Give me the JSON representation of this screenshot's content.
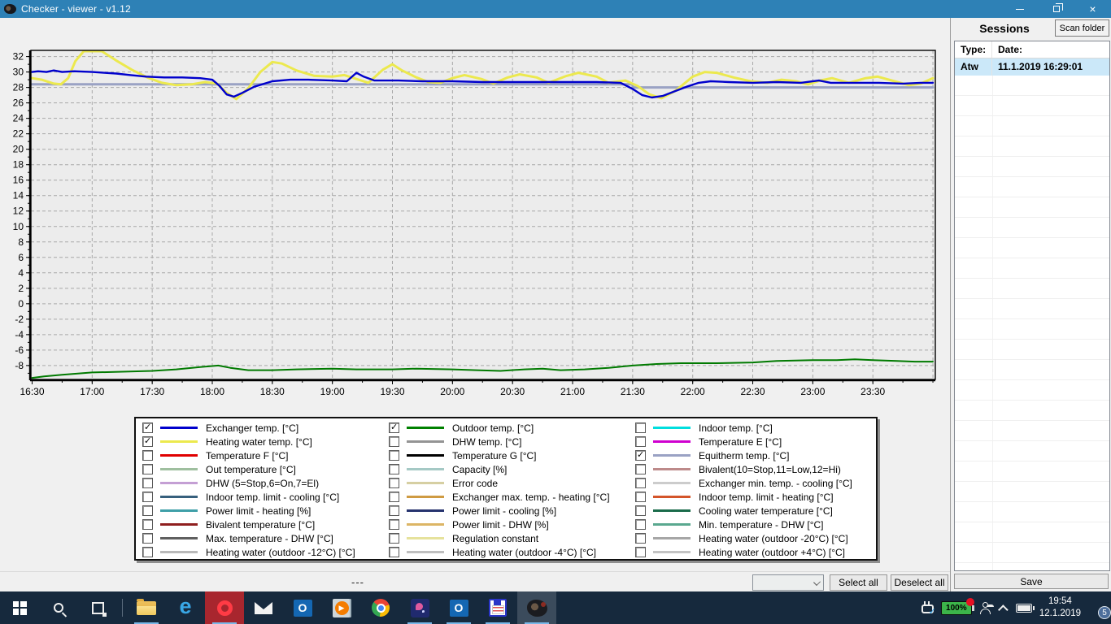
{
  "colors": {
    "titlebar": "#2e81b6",
    "taskbar": "#16293d",
    "selection": "#cbe8f9",
    "plot_background": "#ececec",
    "grid": "#a8a8a8"
  },
  "window": {
    "title": "Checker - viewer - v1.12",
    "controls": {
      "minimize": "minimize",
      "restore": "restore",
      "close": "close"
    }
  },
  "chart_data": {
    "type": "line",
    "title": "",
    "xlabel": "time",
    "ylabel": "temperature / value",
    "grid": "dashed",
    "legend_position": "bottom-box",
    "x_ticks": [
      "16:30",
      "17:00",
      "17:30",
      "18:00",
      "18:30",
      "19:00",
      "19:30",
      "20:00",
      "20:30",
      "21:00",
      "21:30",
      "22:00",
      "22:30",
      "23:00",
      "23:30"
    ],
    "x_tick_hours": [
      16.5,
      17,
      17.5,
      18,
      18.5,
      19,
      19.5,
      20,
      20.5,
      21,
      21.5,
      22,
      22.5,
      23,
      23.5
    ],
    "y_ticks": [
      -8,
      -6,
      -4,
      -2,
      0,
      2,
      4,
      6,
      8,
      10,
      12,
      14,
      16,
      18,
      20,
      22,
      24,
      26,
      28,
      30,
      32
    ],
    "xlim_hours": [
      16.49,
      24.02
    ],
    "ylim": [
      -9.8,
      32.8
    ],
    "series": [
      {
        "name": "Equitherm temp. [°C]",
        "color": "#9aa2c4",
        "width": 3,
        "points": [
          [
            16.5,
            28.4
          ],
          [
            21.5,
            28.4
          ],
          [
            21.5,
            28.0
          ],
          [
            24.0,
            28.0
          ]
        ]
      },
      {
        "name": "Outdoor temp. [°C]",
        "color": "#007a00",
        "width": 2,
        "points": [
          [
            16.5,
            -9.6
          ],
          [
            16.6,
            -9.4
          ],
          [
            16.75,
            -9.2
          ],
          [
            17.0,
            -8.9
          ],
          [
            17.25,
            -8.8
          ],
          [
            17.5,
            -8.7
          ],
          [
            17.7,
            -8.5
          ],
          [
            17.9,
            -8.2
          ],
          [
            18.05,
            -8.0
          ],
          [
            18.15,
            -8.3
          ],
          [
            18.3,
            -8.6
          ],
          [
            18.5,
            -8.6
          ],
          [
            18.7,
            -8.5
          ],
          [
            19.0,
            -8.4
          ],
          [
            19.2,
            -8.5
          ],
          [
            19.5,
            -8.5
          ],
          [
            19.7,
            -8.4
          ],
          [
            20.0,
            -8.5
          ],
          [
            20.2,
            -8.6
          ],
          [
            20.4,
            -8.7
          ],
          [
            20.6,
            -8.5
          ],
          [
            20.75,
            -8.4
          ],
          [
            20.9,
            -8.6
          ],
          [
            21.1,
            -8.5
          ],
          [
            21.3,
            -8.3
          ],
          [
            21.5,
            -8.0
          ],
          [
            21.7,
            -7.8
          ],
          [
            21.9,
            -7.7
          ],
          [
            22.2,
            -7.7
          ],
          [
            22.5,
            -7.6
          ],
          [
            22.7,
            -7.4
          ],
          [
            23.0,
            -7.3
          ],
          [
            23.2,
            -7.3
          ],
          [
            23.35,
            -7.2
          ],
          [
            23.5,
            -7.3
          ],
          [
            23.7,
            -7.4
          ],
          [
            23.85,
            -7.5
          ],
          [
            24.0,
            -7.5
          ]
        ]
      },
      {
        "name": "Heating water temp. [°C]",
        "color": "#ece94e",
        "width": 3,
        "points": [
          [
            16.5,
            29.2
          ],
          [
            16.58,
            29.0
          ],
          [
            16.68,
            28.5
          ],
          [
            16.74,
            28.4
          ],
          [
            16.8,
            29.2
          ],
          [
            16.86,
            31.4
          ],
          [
            16.93,
            33.0
          ],
          [
            17.0,
            33.2
          ],
          [
            17.08,
            32.7
          ],
          [
            17.2,
            31.5
          ],
          [
            17.33,
            30.3
          ],
          [
            17.46,
            29.3
          ],
          [
            17.58,
            28.6
          ],
          [
            17.7,
            28.3
          ],
          [
            17.83,
            28.4
          ],
          [
            17.94,
            28.7
          ],
          [
            18.04,
            28.5
          ],
          [
            18.12,
            27.3
          ],
          [
            18.2,
            26.5
          ],
          [
            18.3,
            27.9
          ],
          [
            18.4,
            30.0
          ],
          [
            18.5,
            31.3
          ],
          [
            18.58,
            31.1
          ],
          [
            18.7,
            30.2
          ],
          [
            18.85,
            29.5
          ],
          [
            19.0,
            29.4
          ],
          [
            19.1,
            29.6
          ],
          [
            19.2,
            29.1
          ],
          [
            19.3,
            28.6
          ],
          [
            19.42,
            30.3
          ],
          [
            19.5,
            31.0
          ],
          [
            19.58,
            30.2
          ],
          [
            19.7,
            29.3
          ],
          [
            19.8,
            28.7
          ],
          [
            19.9,
            28.6
          ],
          [
            20.0,
            29.2
          ],
          [
            20.1,
            29.6
          ],
          [
            20.24,
            29.1
          ],
          [
            20.34,
            28.5
          ],
          [
            20.46,
            29.3
          ],
          [
            20.56,
            29.7
          ],
          [
            20.7,
            29.3
          ],
          [
            20.8,
            28.6
          ],
          [
            20.95,
            29.5
          ],
          [
            21.05,
            29.9
          ],
          [
            21.2,
            29.4
          ],
          [
            21.3,
            28.6
          ],
          [
            21.44,
            28.9
          ],
          [
            21.54,
            28.2
          ],
          [
            21.64,
            27.1
          ],
          [
            21.74,
            26.6
          ],
          [
            21.86,
            27.6
          ],
          [
            22.0,
            29.4
          ],
          [
            22.1,
            30.0
          ],
          [
            22.2,
            29.9
          ],
          [
            22.34,
            29.3
          ],
          [
            22.48,
            28.8
          ],
          [
            22.62,
            28.6
          ],
          [
            22.74,
            29.0
          ],
          [
            22.86,
            28.8
          ],
          [
            22.96,
            28.4
          ],
          [
            23.06,
            28.9
          ],
          [
            23.16,
            29.2
          ],
          [
            23.3,
            28.6
          ],
          [
            23.44,
            29.2
          ],
          [
            23.54,
            29.4
          ],
          [
            23.68,
            28.8
          ],
          [
            23.8,
            28.3
          ],
          [
            23.9,
            28.5
          ],
          [
            24.0,
            29.2
          ]
        ]
      },
      {
        "name": "Exchanger temp. [°C]",
        "color": "#0000cc",
        "width": 2.4,
        "points": [
          [
            16.5,
            30.0
          ],
          [
            16.55,
            30.1
          ],
          [
            16.62,
            30.0
          ],
          [
            16.68,
            30.2
          ],
          [
            16.75,
            30.0
          ],
          [
            16.85,
            30.1
          ],
          [
            17.0,
            30.0
          ],
          [
            17.1,
            29.9
          ],
          [
            17.2,
            29.8
          ],
          [
            17.32,
            29.6
          ],
          [
            17.45,
            29.4
          ],
          [
            17.6,
            29.3
          ],
          [
            17.75,
            29.3
          ],
          [
            17.9,
            29.2
          ],
          [
            18.0,
            29.0
          ],
          [
            18.06,
            28.2
          ],
          [
            18.12,
            27.1
          ],
          [
            18.18,
            26.8
          ],
          [
            18.25,
            27.3
          ],
          [
            18.35,
            28.1
          ],
          [
            18.5,
            28.8
          ],
          [
            18.65,
            29.0
          ],
          [
            18.8,
            29.0
          ],
          [
            19.0,
            28.9
          ],
          [
            19.12,
            28.8
          ],
          [
            19.2,
            29.9
          ],
          [
            19.26,
            29.4
          ],
          [
            19.35,
            28.9
          ],
          [
            19.55,
            28.9
          ],
          [
            19.75,
            28.8
          ],
          [
            20.0,
            28.8
          ],
          [
            20.25,
            28.7
          ],
          [
            20.5,
            28.7
          ],
          [
            20.75,
            28.7
          ],
          [
            21.0,
            28.7
          ],
          [
            21.2,
            28.7
          ],
          [
            21.4,
            28.6
          ],
          [
            21.5,
            27.8
          ],
          [
            21.58,
            27.0
          ],
          [
            21.66,
            26.7
          ],
          [
            21.75,
            26.9
          ],
          [
            21.85,
            27.5
          ],
          [
            21.95,
            28.1
          ],
          [
            22.05,
            28.6
          ],
          [
            22.15,
            28.8
          ],
          [
            22.3,
            28.7
          ],
          [
            22.5,
            28.6
          ],
          [
            22.7,
            28.7
          ],
          [
            22.9,
            28.6
          ],
          [
            23.05,
            28.9
          ],
          [
            23.15,
            28.6
          ],
          [
            23.35,
            28.6
          ],
          [
            23.55,
            28.6
          ],
          [
            23.75,
            28.5
          ],
          [
            23.9,
            28.6
          ],
          [
            24.0,
            28.6
          ]
        ]
      }
    ]
  },
  "legend": {
    "columns": [
      {
        "items": [
          {
            "label": "Exchanger temp. [°C]",
            "color": "#0000cc",
            "checked": true
          },
          {
            "label": "Heating water temp. [°C]",
            "color": "#ece94e",
            "checked": true
          },
          {
            "label": "Temperature F [°C]",
            "color": "#e00000",
            "checked": false
          },
          {
            "label": "Out temperature [°C]",
            "color": "#9fbf9f",
            "checked": false
          },
          {
            "label": "DHW (5=Stop,6=On,7=El)",
            "color": "#c49fd4",
            "checked": false
          },
          {
            "label": "Indoor temp. limit - cooling [°C]",
            "color": "#37607d",
            "checked": false
          },
          {
            "label": "Power limit - heating [%]",
            "color": "#3f9fa8",
            "checked": false
          },
          {
            "label": "Bivalent temperature [°C]",
            "color": "#8f1f1f",
            "checked": false
          },
          {
            "label": "Max. temperature - DHW [°C]",
            "color": "#5f5f5f",
            "checked": false
          },
          {
            "label": "Heating water (outdoor -12°C) [°C]",
            "color": "#b9b9b9",
            "checked": false
          }
        ]
      },
      {
        "items": [
          {
            "label": "Outdoor temp. [°C]",
            "color": "#008000",
            "checked": true
          },
          {
            "label": "DHW temp. [°C]",
            "color": "#949494",
            "checked": false
          },
          {
            "label": "Temperature G [°C]",
            "color": "#000000",
            "checked": false
          },
          {
            "label": "Capacity [%]",
            "color": "#a5c9c5",
            "checked": false
          },
          {
            "label": "Error code",
            "color": "#d6cfa2",
            "checked": false
          },
          {
            "label": "Exchanger max. temp. - heating [°C]",
            "color": "#cf9b42",
            "checked": false
          },
          {
            "label": "Power limit - cooling [%]",
            "color": "#26336e",
            "checked": false
          },
          {
            "label": "Power limit - DHW [%]",
            "color": "#dcb565",
            "checked": false
          },
          {
            "label": "Regulation constant",
            "color": "#e6e29c",
            "checked": false
          },
          {
            "label": "Heating water (outdoor -4°C) [°C]",
            "color": "#bfbfbf",
            "checked": false
          }
        ]
      },
      {
        "items": [
          {
            "label": "Indoor temp. [°C]",
            "color": "#00dede",
            "checked": false
          },
          {
            "label": "Temperature E [°C]",
            "color": "#cf00cf",
            "checked": false
          },
          {
            "label": "Equitherm temp. [°C]",
            "color": "#9aa2c4",
            "checked": true
          },
          {
            "label": "Bivalent(10=Stop,11=Low,12=Hi)",
            "color": "#bd8a8a",
            "checked": false
          },
          {
            "label": "Exchanger min. temp. - cooling [°C]",
            "color": "#cccccc",
            "checked": false
          },
          {
            "label": "Indoor temp. limit - heating [°C]",
            "color": "#d4552a",
            "checked": false
          },
          {
            "label": "Cooling water temperature [°C]",
            "color": "#1a6b4a",
            "checked": false
          },
          {
            "label": "Min. temperature - DHW [°C]",
            "color": "#5aa88f",
            "checked": false
          },
          {
            "label": "Heating water (outdoor -20°C) [°C]",
            "color": "#a6a6a6",
            "checked": false
          },
          {
            "label": "Heating water (outdoor +4°C) [°C]",
            "color": "#c3c3c3",
            "checked": false
          }
        ]
      }
    ]
  },
  "sessions": {
    "title": "Sessions",
    "scan_button_label": "Scan folder",
    "columns": [
      "Type:",
      "Date:"
    ],
    "rows": [
      {
        "type": "Atw",
        "date": "11.1.2019 16:29:01",
        "selected": true
      }
    ],
    "empty_row_count": 25
  },
  "bottom_bar": {
    "status": "---",
    "select_all": "Select all",
    "deselect_all": "Deselect all",
    "save": "Save"
  },
  "taskbar": {
    "items": [
      {
        "name": "start"
      },
      {
        "name": "search"
      },
      {
        "name": "task-view"
      },
      {
        "name": "divider"
      },
      {
        "name": "file-explorer",
        "running": true
      },
      {
        "name": "edge"
      },
      {
        "name": "opera",
        "attention": true,
        "running": true
      },
      {
        "name": "mail"
      },
      {
        "name": "outlook"
      },
      {
        "name": "media-player"
      },
      {
        "name": "chrome"
      },
      {
        "name": "messenger-app",
        "running": true
      },
      {
        "name": "outlook-2",
        "running": true
      },
      {
        "name": "floppy-app",
        "running": true
      },
      {
        "name": "checker-app",
        "running": true,
        "active": true
      }
    ],
    "tray": {
      "battery_label": "100%",
      "time": "19:54",
      "date": "12.1.2019",
      "notification_badge": "5"
    }
  }
}
